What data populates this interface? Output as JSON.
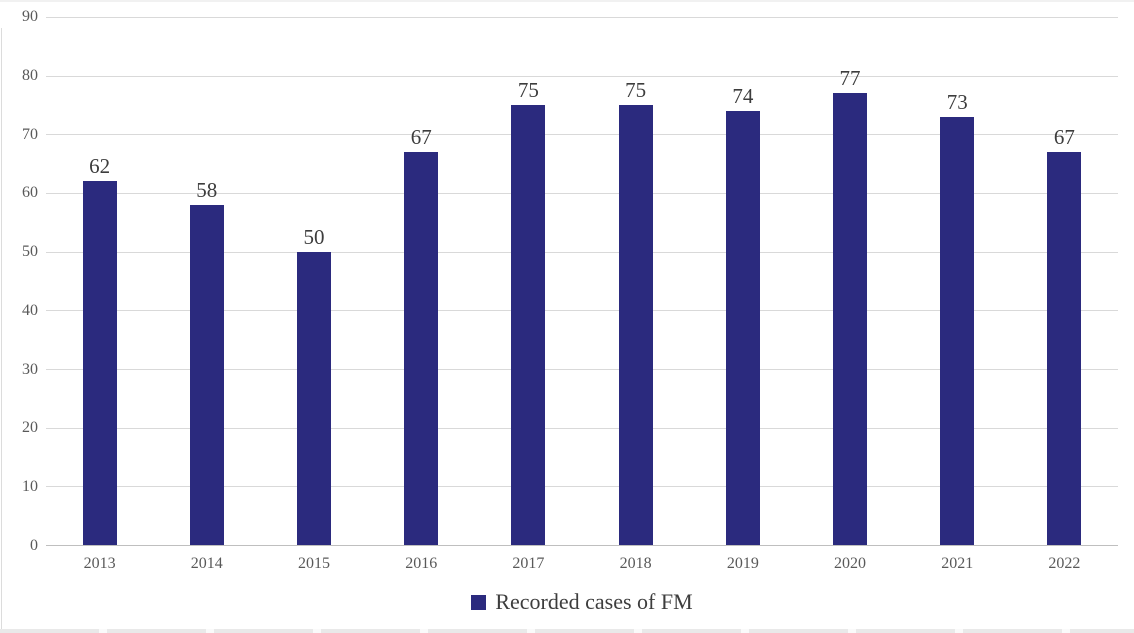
{
  "chart_data": {
    "type": "bar",
    "categories": [
      "2013",
      "2014",
      "2015",
      "2016",
      "2017",
      "2018",
      "2019",
      "2020",
      "2021",
      "2022"
    ],
    "series": [
      {
        "name": "Recorded cases of FM",
        "values": [
          62,
          58,
          50,
          67,
          75,
          75,
          74,
          77,
          73,
          67
        ]
      }
    ],
    "title": "",
    "xlabel": "",
    "ylabel": "",
    "ylim": [
      0,
      90
    ],
    "y_ticks": [
      0,
      10,
      20,
      30,
      40,
      50,
      60,
      70,
      80,
      90
    ],
    "grid": "horizontal",
    "data_labels_shown": true,
    "legend": {
      "label": "Recorded cases of FM",
      "position": "bottom"
    },
    "colors": {
      "bar": "#2b2a7e",
      "data_label": "#3d3d3d",
      "axis_label": "#595959",
      "gridline": "#d9d9d9",
      "axis_line": "#bfbfbf",
      "background": "#ffffff"
    }
  }
}
